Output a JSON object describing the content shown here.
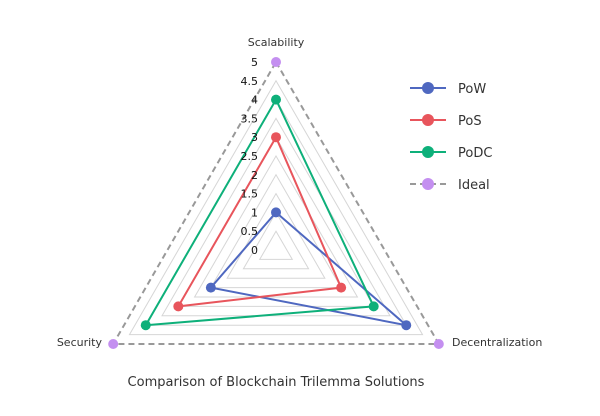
{
  "chart_data": {
    "type": "radar",
    "title": "Comparison of Blockchain Trilemma Solutions",
    "axes": [
      "Scalability",
      "Decentralization",
      "Security"
    ],
    "rlim": [
      0,
      5
    ],
    "rticks": [
      "0",
      "0.5",
      "1",
      "1.5",
      "2",
      "2.5",
      "3",
      "3.5",
      "4",
      "4.5",
      "5"
    ],
    "legend_position": "right",
    "series": [
      {
        "name": "PoW",
        "values": [
          1,
          4,
          2
        ],
        "color": "#4f68c0",
        "dashed": false
      },
      {
        "name": "PoS",
        "values": [
          3,
          2,
          3
        ],
        "color": "#e8555c",
        "dashed": false
      },
      {
        "name": "PoDC",
        "values": [
          4,
          3,
          4
        ],
        "color": "#0eb07a",
        "dashed": false
      },
      {
        "name": "Ideal",
        "values": [
          5,
          5,
          5
        ],
        "color": "#999999",
        "marker_color": "#c48ff0",
        "dashed": true
      }
    ]
  }
}
